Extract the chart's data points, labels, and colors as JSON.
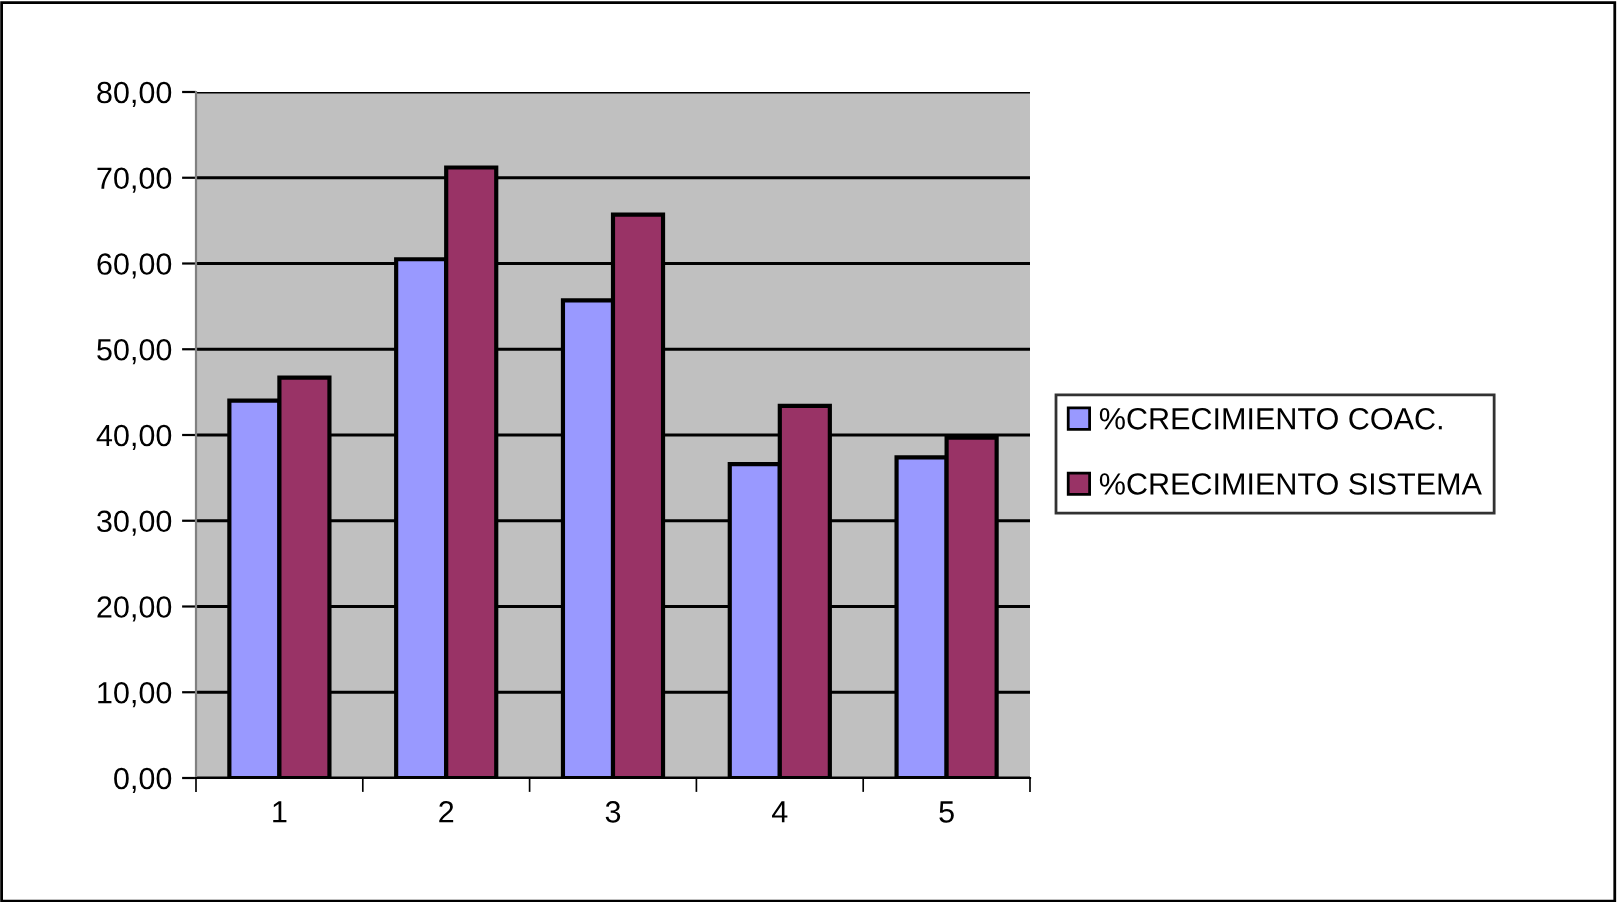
{
  "chart_data": {
    "type": "bar",
    "categories": [
      "1",
      "2",
      "3",
      "4",
      "5"
    ],
    "series": [
      {
        "name": "%CRECIMIENTO COAC.",
        "color": "#9999ff",
        "values": [
          44.0,
          60.5,
          55.7,
          36.6,
          37.4
        ]
      },
      {
        "name": "%CRECIMIENTO SISTEMA",
        "color": "#993366",
        "values": [
          46.7,
          71.2,
          65.7,
          43.4,
          39.7
        ]
      }
    ],
    "ylim": [
      0,
      80
    ],
    "yticks": [
      {
        "value": 0,
        "label": "0,00"
      },
      {
        "value": 10,
        "label": "10,00"
      },
      {
        "value": 20,
        "label": "20,00"
      },
      {
        "value": 30,
        "label": "30,00"
      },
      {
        "value": 40,
        "label": "40,00"
      },
      {
        "value": 50,
        "label": "50,00"
      },
      {
        "value": 60,
        "label": "60,00"
      },
      {
        "value": 70,
        "label": "70,00"
      },
      {
        "value": 80,
        "label": "80,00"
      }
    ],
    "grid": "y",
    "legend": "right"
  }
}
